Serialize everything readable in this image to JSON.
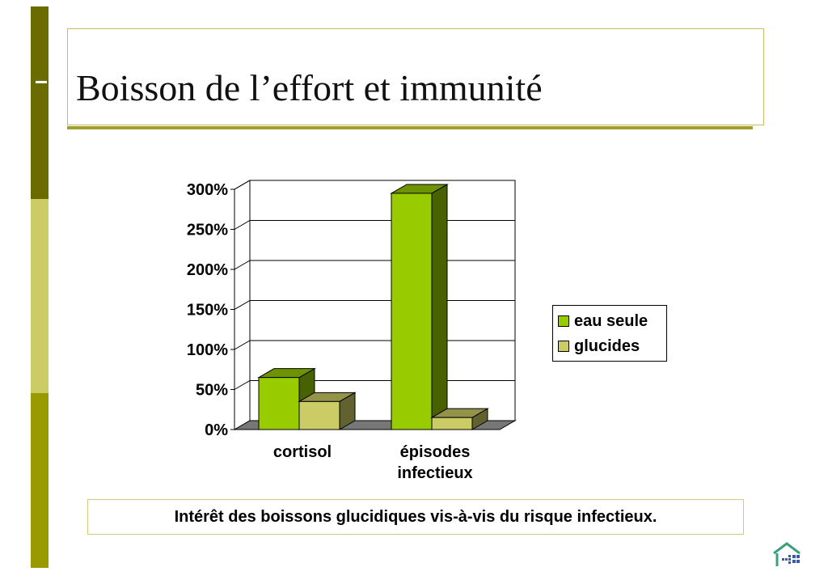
{
  "slide": {
    "title": "Boisson de l’effort et immunité",
    "caption": "Intérêt des boissons glucidiques vis-à-vis du risque infectieux.",
    "logo_icon": "house-grid-logo-icon",
    "colors": {
      "sidebar_dark": "#6a6b00",
      "sidebar_light": "#cccc66",
      "sidebar_mid": "#999900",
      "title_underline": "#a29f2e"
    }
  },
  "chart_data": {
    "type": "bar",
    "style": "3d-clustered",
    "categories": [
      [
        "cortisol"
      ],
      [
        "épisodes",
        "infectieux"
      ]
    ],
    "series": [
      {
        "name": "eau seule",
        "values": [
          65,
          295
        ],
        "color": "#99cc00"
      },
      {
        "name": "glucides",
        "values": [
          35,
          15
        ],
        "color": "#cccc66"
      }
    ],
    "yticks": [
      "0%",
      "50%",
      "100%",
      "150%",
      "200%",
      "250%",
      "300%"
    ],
    "ytick_values": [
      0,
      50,
      100,
      150,
      200,
      250,
      300
    ],
    "ylim": [
      0,
      300
    ],
    "grid": true,
    "legend_position": "right"
  }
}
